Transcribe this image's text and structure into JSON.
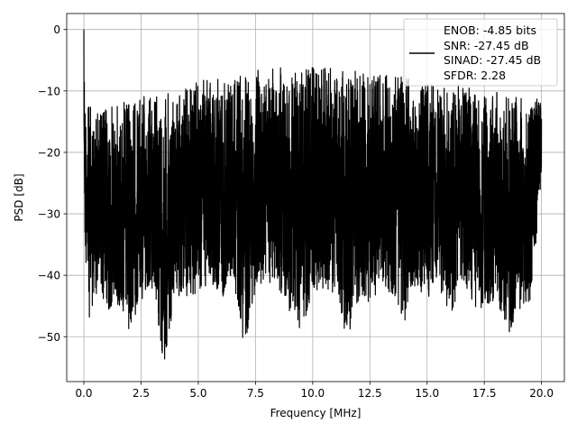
{
  "chart_data": {
    "type": "line",
    "title": "",
    "xlabel": "Frequency [MHz]",
    "ylabel": "PSD [dB]",
    "xlim": [
      -0.75,
      21.0
    ],
    "ylim": [
      -57.3,
      2.6
    ],
    "xticks": [
      0.0,
      2.5,
      5.0,
      7.5,
      10.0,
      12.5,
      15.0,
      17.5,
      20.0
    ],
    "xtick_labels": [
      "0.0",
      "2.5",
      "5.0",
      "7.5",
      "10.0",
      "12.5",
      "15.0",
      "17.5",
      "20.0"
    ],
    "yticks": [
      0,
      -10,
      -20,
      -30,
      -40,
      -50
    ],
    "ytick_labels": [
      "0",
      "−10",
      "−20",
      "−30",
      "−40",
      "−50"
    ],
    "grid": true,
    "legend_position": "top-right",
    "legend": [
      "ENOB: -4.85 bits",
      "SNR: -27.45 dB",
      "SINAD: -27.45 dB",
      "SFDR: 2.28"
    ],
    "series": [
      {
        "color": "#000000",
        "x": [
          0.0,
          0.05,
          0.12,
          0.25,
          0.5,
          0.75,
          1.0,
          1.5,
          2.0,
          2.5,
          3.0,
          3.5,
          4.0,
          4.5,
          5.0,
          5.5,
          6.0,
          6.5,
          7.0,
          7.5,
          8.0,
          8.5,
          9.0,
          9.5,
          10.0,
          10.5,
          11.0,
          11.5,
          12.0,
          12.5,
          13.0,
          13.5,
          14.0,
          14.5,
          15.0,
          15.5,
          16.0,
          16.5,
          17.0,
          17.5,
          18.0,
          18.5,
          19.0,
          19.5,
          20.0
        ],
        "y_max": [
          0.0,
          -10.0,
          -11.5,
          -12.0,
          -13.0,
          -12.0,
          -12.5,
          -12.0,
          -11.5,
          -11.0,
          -10.0,
          -10.5,
          -9.5,
          -9.0,
          -8.5,
          -8.0,
          -7.5,
          -7.5,
          -7.0,
          -6.5,
          -6.5,
          -6.0,
          -6.5,
          -6.0,
          -6.0,
          -6.0,
          -6.5,
          -6.0,
          -6.5,
          -7.0,
          -7.0,
          -7.5,
          -7.5,
          -8.0,
          -8.5,
          -8.5,
          -9.0,
          -9.0,
          -9.5,
          -10.0,
          -10.0,
          -10.5,
          -11.0,
          -11.5,
          -11.0
        ],
        "y_min": [
          -20.0,
          -36.0,
          -40.0,
          -47.5,
          -44.0,
          -42.0,
          -47.0,
          -45.0,
          -49.0,
          -44.0,
          -42.0,
          -54.5,
          -43.0,
          -44.0,
          -43.0,
          -41.0,
          -44.0,
          -40.0,
          -51.5,
          -43.0,
          -41.0,
          -42.0,
          -46.0,
          -49.0,
          -43.0,
          -42.0,
          -43.0,
          -50.5,
          -44.0,
          -45.0,
          -42.0,
          -43.0,
          -48.0,
          -42.0,
          -44.0,
          -42.0,
          -47.0,
          -42.0,
          -45.0,
          -46.0,
          -44.0,
          -50.0,
          -46.0,
          -44.0,
          -26.0
        ]
      }
    ]
  }
}
